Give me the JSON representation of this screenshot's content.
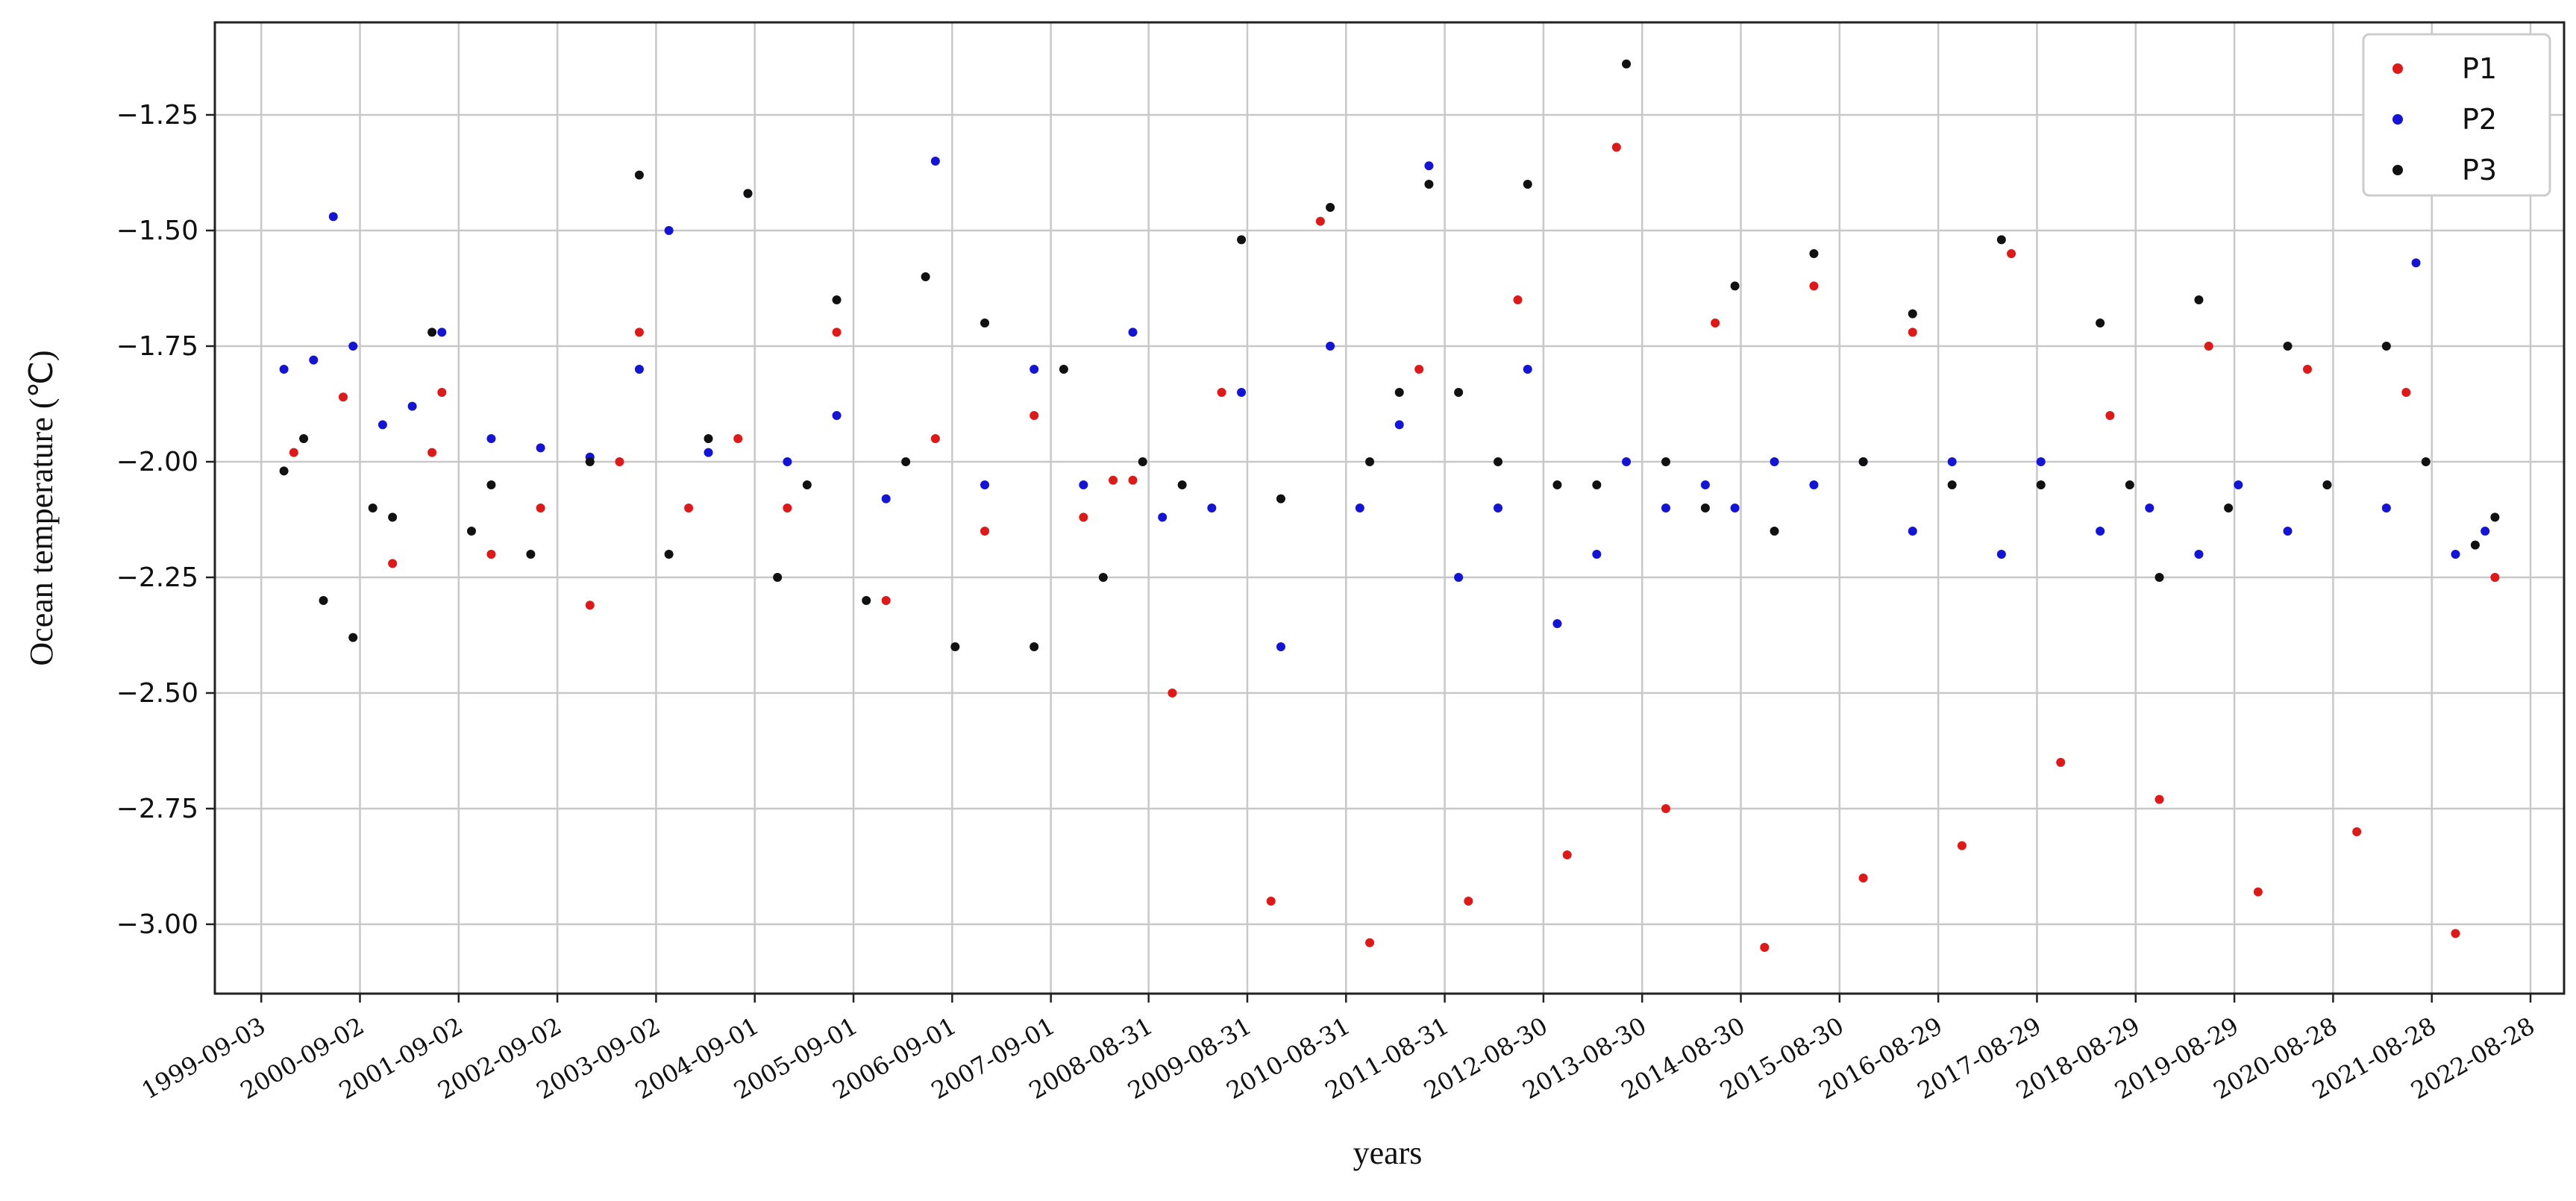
{
  "chart_data": {
    "type": "scatter",
    "title": "",
    "xlabel": "years",
    "ylabel": "Ocean temperature (℃)",
    "ylim": [
      -3.15,
      -1.05
    ],
    "xlim": [
      1999.2,
      2023.0
    ],
    "grid": true,
    "legend_position": "top-right",
    "y_ticks": [
      -3.0,
      -2.75,
      -2.5,
      -2.25,
      -2.0,
      -1.75,
      -1.5,
      -1.25
    ],
    "y_tick_labels": [
      "−3.00",
      "−2.75",
      "−2.50",
      "−2.25",
      "−2.00",
      "−1.75",
      "−1.50",
      "−1.25"
    ],
    "x_ticks": [
      1999.67,
      2000.67,
      2001.67,
      2002.67,
      2003.67,
      2004.67,
      2005.67,
      2006.67,
      2007.67,
      2008.66,
      2009.66,
      2010.66,
      2011.66,
      2012.66,
      2013.66,
      2014.66,
      2015.66,
      2016.66,
      2017.66,
      2018.66,
      2019.66,
      2020.66,
      2021.66,
      2022.66
    ],
    "x_tick_labels": [
      "1999-09-03",
      "2000-09-02",
      "2001-09-02",
      "2002-09-02",
      "2003-09-02",
      "2004-09-01",
      "2005-09-01",
      "2006-09-01",
      "2007-09-01",
      "2008-08-31",
      "2009-08-31",
      "2010-08-31",
      "2011-08-31",
      "2012-08-30",
      "2013-08-30",
      "2014-08-30",
      "2015-08-30",
      "2016-08-29",
      "2017-08-29",
      "2018-08-29",
      "2019-08-29",
      "2020-08-28",
      "2021-08-28",
      "2022-08-28"
    ],
    "series": [
      {
        "name": "P1",
        "color": "#e01818",
        "x": [
          2000.0,
          2000.5,
          2001.0,
          2001.4,
          2001.5,
          2002.0,
          2002.5,
          2003.0,
          2003.3,
          2003.5,
          2004.0,
          2004.5,
          2005.0,
          2005.5,
          2006.0,
          2006.5,
          2007.0,
          2007.5,
          2008.0,
          2008.3,
          2008.5,
          2008.9,
          2009.4,
          2009.9,
          2010.4,
          2010.9,
          2011.4,
          2011.9,
          2012.4,
          2012.9,
          2013.4,
          2013.9,
          2014.4,
          2014.9,
          2015.4,
          2015.9,
          2016.4,
          2016.9,
          2017.4,
          2017.9,
          2018.4,
          2018.9,
          2019.4,
          2019.9,
          2020.4,
          2020.9,
          2021.4,
          2021.9,
          2022.3
        ],
        "y": [
          -1.98,
          -1.86,
          -2.22,
          -1.98,
          -1.85,
          -2.2,
          -2.1,
          -2.31,
          -2.0,
          -1.72,
          -2.1,
          -1.95,
          -2.1,
          -1.72,
          -2.3,
          -1.95,
          -2.15,
          -1.9,
          -2.12,
          -2.04,
          -2.04,
          -2.5,
          -1.85,
          -2.95,
          -1.48,
          -3.04,
          -1.8,
          -2.95,
          -1.65,
          -2.85,
          -1.32,
          -2.75,
          -1.7,
          -3.05,
          -1.62,
          -2.9,
          -1.72,
          -2.83,
          -1.55,
          -2.65,
          -1.9,
          -2.73,
          -1.75,
          -2.93,
          -1.8,
          -2.8,
          -1.85,
          -3.02,
          -2.25
        ]
      },
      {
        "name": "P2",
        "color": "#1414d8",
        "x": [
          1999.9,
          2000.2,
          2000.4,
          2000.6,
          2000.9,
          2001.2,
          2001.5,
          2002.0,
          2002.5,
          2003.0,
          2003.5,
          2003.8,
          2004.2,
          2004.6,
          2005.0,
          2005.5,
          2006.0,
          2006.5,
          2007.0,
          2007.5,
          2008.0,
          2008.5,
          2008.8,
          2009.3,
          2009.6,
          2010.0,
          2010.5,
          2010.8,
          2011.2,
          2011.5,
          2011.8,
          2012.2,
          2012.5,
          2012.8,
          2013.2,
          2013.5,
          2013.9,
          2014.3,
          2014.6,
          2015.0,
          2015.4,
          2015.9,
          2016.4,
          2016.8,
          2017.3,
          2017.7,
          2018.3,
          2018.8,
          2019.3,
          2019.7,
          2020.2,
          2020.6,
          2021.2,
          2021.5,
          2021.9,
          2022.2
        ],
        "y": [
          -1.8,
          -1.78,
          -1.47,
          -1.75,
          -1.92,
          -1.88,
          -1.72,
          -1.95,
          -1.97,
          -1.99,
          -1.8,
          -1.5,
          -1.98,
          -1.42,
          -2.0,
          -1.9,
          -2.08,
          -1.35,
          -2.05,
          -1.8,
          -2.05,
          -1.72,
          -2.12,
          -2.1,
          -1.85,
          -2.4,
          -1.75,
          -2.1,
          -1.92,
          -1.36,
          -2.25,
          -2.1,
          -1.8,
          -2.35,
          -2.2,
          -2.0,
          -2.1,
          -2.05,
          -2.1,
          -2.0,
          -2.05,
          -2.0,
          -2.15,
          -2.0,
          -2.2,
          -2.0,
          -2.15,
          -2.1,
          -2.2,
          -2.05,
          -2.15,
          -2.05,
          -2.1,
          -1.57,
          -2.2,
          -2.15
        ]
      },
      {
        "name": "P3",
        "color": "#111111",
        "x": [
          1999.9,
          2000.1,
          2000.3,
          2000.6,
          2000.8,
          2001.0,
          2001.4,
          2001.8,
          2002.0,
          2002.4,
          2003.0,
          2003.5,
          2003.8,
          2004.2,
          2004.6,
          2004.9,
          2005.2,
          2005.5,
          2005.8,
          2006.2,
          2006.4,
          2006.7,
          2007.0,
          2007.5,
          2007.8,
          2008.2,
          2008.6,
          2009.0,
          2009.6,
          2010.0,
          2010.5,
          2010.9,
          2011.2,
          2011.5,
          2011.8,
          2012.2,
          2012.5,
          2012.8,
          2013.2,
          2013.5,
          2013.9,
          2014.3,
          2014.6,
          2015.0,
          2015.4,
          2015.9,
          2016.4,
          2016.8,
          2017.3,
          2017.7,
          2018.3,
          2018.6,
          2018.9,
          2019.3,
          2019.6,
          2020.2,
          2020.6,
          2021.2,
          2021.6,
          2022.1,
          2022.3
        ],
        "y": [
          -2.02,
          -1.95,
          -2.3,
          -2.38,
          -2.1,
          -2.12,
          -1.72,
          -2.15,
          -2.05,
          -2.2,
          -2.0,
          -1.38,
          -2.2,
          -1.95,
          -1.42,
          -2.25,
          -2.05,
          -1.65,
          -2.3,
          -2.0,
          -1.6,
          -2.4,
          -1.7,
          -2.4,
          -1.8,
          -2.25,
          -2.0,
          -2.05,
          -1.52,
          -2.08,
          -1.45,
          -2.0,
          -1.85,
          -1.4,
          -1.85,
          -2.0,
          -1.4,
          -2.05,
          -2.05,
          -1.14,
          -2.0,
          -2.1,
          -1.62,
          -2.15,
          -1.55,
          -2.0,
          -1.68,
          -2.05,
          -1.52,
          -2.05,
          -1.7,
          -2.05,
          -2.25,
          -1.65,
          -2.1,
          -1.75,
          -2.05,
          -1.75,
          -2.0,
          -2.18,
          -2.12
        ]
      }
    ]
  }
}
